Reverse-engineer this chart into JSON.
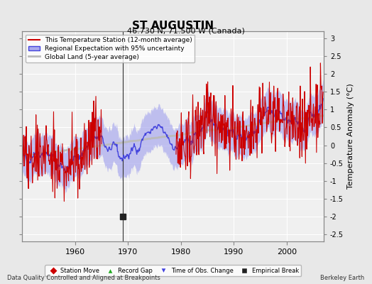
{
  "title": "ST AUGUSTIN",
  "subtitle": "46.730 N, 71.500 W (Canada)",
  "ylabel": "Temperature Anomaly (°C)",
  "footer_left": "Data Quality Controlled and Aligned at Breakpoints",
  "footer_right": "Berkeley Earth",
  "xlim": [
    1950,
    2007
  ],
  "ylim": [
    -2.7,
    3.2
  ],
  "yticks": [
    -2.5,
    -2,
    -1.5,
    -1,
    -0.5,
    0,
    0.5,
    1,
    1.5,
    2,
    2.5,
    3
  ],
  "xticks": [
    1960,
    1970,
    1980,
    1990,
    2000
  ],
  "bg_color": "#e8e8e8",
  "plot_bg_color": "#f0f0f0",
  "grid_color": "#ffffff",
  "station_color": "#cc0000",
  "regional_color": "#4444dd",
  "regional_fill_color": "#aaaaee",
  "global_color": "#bbbbbb",
  "legend_items": [
    {
      "label": "This Temperature Station (12-month average)",
      "color": "#cc0000",
      "lw": 1.5
    },
    {
      "label": "Regional Expectation with 95% uncertainty",
      "color": "#4444dd",
      "fill": "#aaaaee"
    },
    {
      "label": "Global Land (5-year average)",
      "color": "#bbbbbb",
      "lw": 1.5
    }
  ],
  "marker_legend": [
    {
      "label": "Station Move",
      "color": "#cc0000",
      "marker": "D"
    },
    {
      "label": "Record Gap",
      "color": "#22aa22",
      "marker": "^"
    },
    {
      "label": "Time of Obs. Change",
      "color": "#4444dd",
      "marker": "v"
    },
    {
      "label": "Empirical Break",
      "color": "#222222",
      "marker": "s"
    }
  ],
  "empirical_breaks": [
    1969.0
  ]
}
